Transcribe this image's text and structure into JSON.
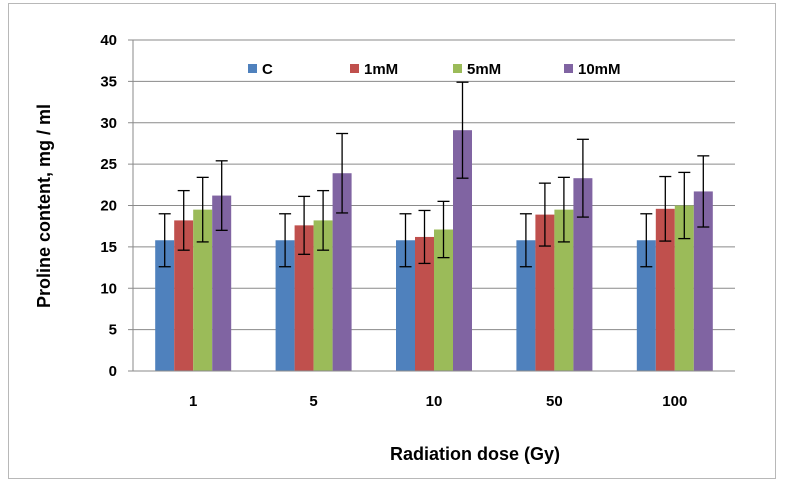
{
  "chart_data": {
    "type": "bar",
    "title": "",
    "xlabel": "Radiation dose (Gy)",
    "ylabel": "Proline content, mg / ml",
    "categories": [
      "1",
      "5",
      "10",
      "50",
      "100"
    ],
    "ylim": [
      0,
      40
    ],
    "yticks": [
      "0",
      "5",
      "10",
      "15",
      "20",
      "25",
      "30",
      "35",
      "40"
    ],
    "grid": true,
    "legend_position": "top",
    "series": [
      {
        "name": "C",
        "color": "#4f81bd",
        "values": [
          15.8,
          15.8,
          15.8,
          15.8,
          15.8
        ],
        "errors": [
          3.2,
          3.2,
          3.2,
          3.2,
          3.2
        ]
      },
      {
        "name": "1mM",
        "color": "#c0504d",
        "values": [
          18.2,
          17.6,
          16.2,
          18.9,
          19.6
        ],
        "errors": [
          3.6,
          3.5,
          3.2,
          3.8,
          3.9
        ]
      },
      {
        "name": "5mM",
        "color": "#9bbb59",
        "values": [
          19.5,
          18.2,
          17.1,
          19.5,
          20.0
        ],
        "errors": [
          3.9,
          3.6,
          3.4,
          3.9,
          4.0
        ]
      },
      {
        "name": "10mM",
        "color": "#8064a2",
        "values": [
          21.2,
          23.9,
          29.1,
          23.3,
          21.7
        ],
        "errors": [
          4.2,
          4.8,
          5.8,
          4.7,
          4.3
        ]
      }
    ]
  }
}
